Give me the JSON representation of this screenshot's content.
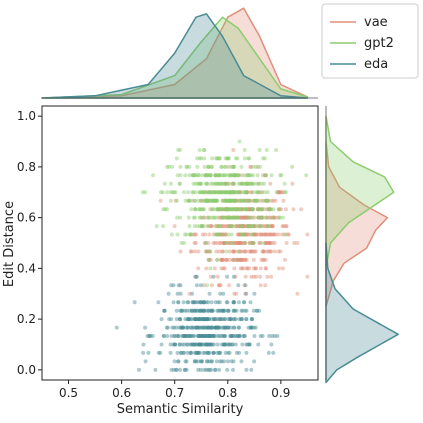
{
  "chart_data": {
    "type": "scatter",
    "title": "",
    "xlabel": "Semantic Similarity",
    "ylabel": "Edit Distance",
    "xlim": [
      0.45,
      0.97
    ],
    "ylim": [
      -0.04,
      1.04
    ],
    "xticks": [
      0.5,
      0.6,
      0.7,
      0.8,
      0.9
    ],
    "yticks": [
      0.0,
      0.2,
      0.4,
      0.6,
      0.8,
      1.0
    ],
    "grid": false,
    "legend_placement": "top-right",
    "marginals": [
      "top-kde-x",
      "right-kde-y"
    ],
    "series": [
      {
        "name": "vae",
        "color": "#e08f7b",
        "x_center": 0.83,
        "x_spread": 0.045,
        "y_center": 0.55,
        "y_spread": 0.1,
        "x_kde": [
          [
            0.45,
            0
          ],
          [
            0.6,
            0.02
          ],
          [
            0.7,
            0.12
          ],
          [
            0.76,
            0.35
          ],
          [
            0.8,
            0.72
          ],
          [
            0.83,
            0.8
          ],
          [
            0.86,
            0.55
          ],
          [
            0.9,
            0.12
          ],
          [
            0.95,
            0.01
          ]
        ],
        "y_kde": [
          [
            0.25,
            0
          ],
          [
            0.35,
            0.08
          ],
          [
            0.42,
            0.2
          ],
          [
            0.48,
            0.45
          ],
          [
            0.55,
            0.55
          ],
          [
            0.6,
            0.68
          ],
          [
            0.65,
            0.42
          ],
          [
            0.72,
            0.15
          ],
          [
            0.8,
            0.03
          ],
          [
            0.9,
            0
          ]
        ]
      },
      {
        "name": "gpt2",
        "color": "#8ccc6f",
        "x_center": 0.79,
        "x_spread": 0.05,
        "y_center": 0.68,
        "y_spread": 0.09,
        "x_kde": [
          [
            0.45,
            0
          ],
          [
            0.6,
            0.03
          ],
          [
            0.7,
            0.2
          ],
          [
            0.75,
            0.5
          ],
          [
            0.79,
            0.72
          ],
          [
            0.82,
            0.62
          ],
          [
            0.86,
            0.35
          ],
          [
            0.9,
            0.08
          ],
          [
            0.95,
            0.01
          ]
        ],
        "y_kde": [
          [
            0.4,
            0
          ],
          [
            0.5,
            0.05
          ],
          [
            0.58,
            0.25
          ],
          [
            0.64,
            0.5
          ],
          [
            0.7,
            0.75
          ],
          [
            0.76,
            0.65
          ],
          [
            0.82,
            0.3
          ],
          [
            0.9,
            0.05
          ],
          [
            1.0,
            0
          ]
        ]
      },
      {
        "name": "eda",
        "color": "#4a8b94",
        "x_center": 0.76,
        "x_spread": 0.045,
        "y_center": 0.15,
        "y_spread": 0.08,
        "x_kde": [
          [
            0.45,
            0
          ],
          [
            0.55,
            0.02
          ],
          [
            0.65,
            0.12
          ],
          [
            0.7,
            0.4
          ],
          [
            0.74,
            0.72
          ],
          [
            0.76,
            0.75
          ],
          [
            0.79,
            0.55
          ],
          [
            0.83,
            0.2
          ],
          [
            0.9,
            0.02
          ],
          [
            0.95,
            0
          ]
        ],
        "y_kde": [
          [
            -0.05,
            0
          ],
          [
            0.0,
            0.12
          ],
          [
            0.05,
            0.35
          ],
          [
            0.1,
            0.6
          ],
          [
            0.14,
            0.8
          ],
          [
            0.18,
            0.6
          ],
          [
            0.24,
            0.3
          ],
          [
            0.32,
            0.1
          ],
          [
            0.4,
            0.02
          ],
          [
            0.5,
            0
          ]
        ]
      }
    ]
  }
}
